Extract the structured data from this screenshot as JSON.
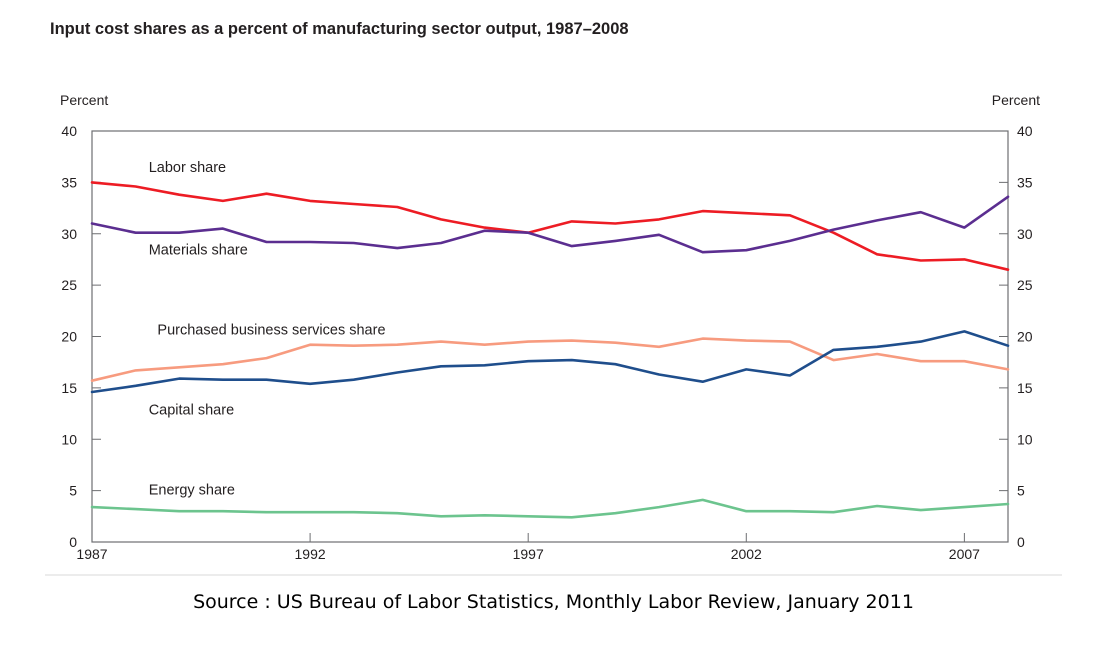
{
  "page": {
    "title": "Input cost shares as a percent of manufacturing sector output, 1987–2008",
    "source": "Source : US Bureau of Labor Statistics, Monthly Labor Review, January 2011"
  },
  "chart_data": {
    "type": "line",
    "title": "Input cost shares as a percent of manufacturing sector output, 1987–2008",
    "ylabel_left": "Percent",
    "ylabel_right": "Percent",
    "xlabel": "",
    "xlim": [
      1987,
      2008
    ],
    "ylim": [
      0,
      40
    ],
    "x_ticks": [
      1987,
      1992,
      1997,
      2002,
      2007
    ],
    "y_ticks": [
      0,
      5,
      10,
      15,
      20,
      25,
      30,
      35,
      40
    ],
    "x_tick_labels": [
      "1987",
      "1992",
      "1997",
      "2002",
      "2007"
    ],
    "y_tick_labels": [
      "0",
      "5",
      "10",
      "15",
      "20",
      "25",
      "30",
      "35",
      "40"
    ],
    "x": [
      1987,
      1988,
      1989,
      1990,
      1991,
      1992,
      1993,
      1994,
      1995,
      1996,
      1997,
      1998,
      1999,
      2000,
      2001,
      2002,
      2003,
      2004,
      2005,
      2006,
      2007,
      2008
    ],
    "series": [
      {
        "name": "Labor share",
        "color": "#ed1c24",
        "values": [
          35.0,
          34.6,
          33.8,
          33.2,
          33.9,
          33.2,
          32.9,
          32.6,
          31.4,
          30.6,
          30.1,
          31.2,
          31.0,
          31.4,
          32.2,
          32.0,
          31.8,
          30.1,
          28.0,
          27.4,
          27.5,
          26.5
        ]
      },
      {
        "name": "Materials share",
        "color": "#5b2e90",
        "values": [
          31.0,
          30.1,
          30.1,
          30.5,
          29.2,
          29.2,
          29.1,
          28.6,
          29.1,
          30.3,
          30.1,
          28.8,
          29.3,
          29.9,
          28.2,
          28.4,
          29.3,
          30.4,
          31.3,
          32.1,
          30.6,
          33.6
        ]
      },
      {
        "name": "Purchased business services share",
        "color": "#f79b7f",
        "values": [
          15.7,
          16.7,
          17.0,
          17.3,
          17.9,
          19.2,
          19.1,
          19.2,
          19.5,
          19.2,
          19.5,
          19.6,
          19.4,
          19.0,
          19.8,
          19.6,
          19.5,
          17.7,
          18.3,
          17.6,
          17.6,
          16.8
        ]
      },
      {
        "name": "Capital share",
        "color": "#1f4e8c",
        "values": [
          14.6,
          15.2,
          15.9,
          15.8,
          15.8,
          15.4,
          15.8,
          16.5,
          17.1,
          17.2,
          17.6,
          17.7,
          17.3,
          16.3,
          15.6,
          16.8,
          16.2,
          18.7,
          19.0,
          19.5,
          20.5,
          19.1
        ]
      },
      {
        "name": "Energy share",
        "color": "#6cc48e",
        "values": [
          3.4,
          3.2,
          3.0,
          3.0,
          2.9,
          2.9,
          2.9,
          2.8,
          2.5,
          2.6,
          2.5,
          2.4,
          2.8,
          3.4,
          4.1,
          3.0,
          3.0,
          2.9,
          3.5,
          3.1,
          3.4,
          3.7
        ]
      }
    ]
  }
}
